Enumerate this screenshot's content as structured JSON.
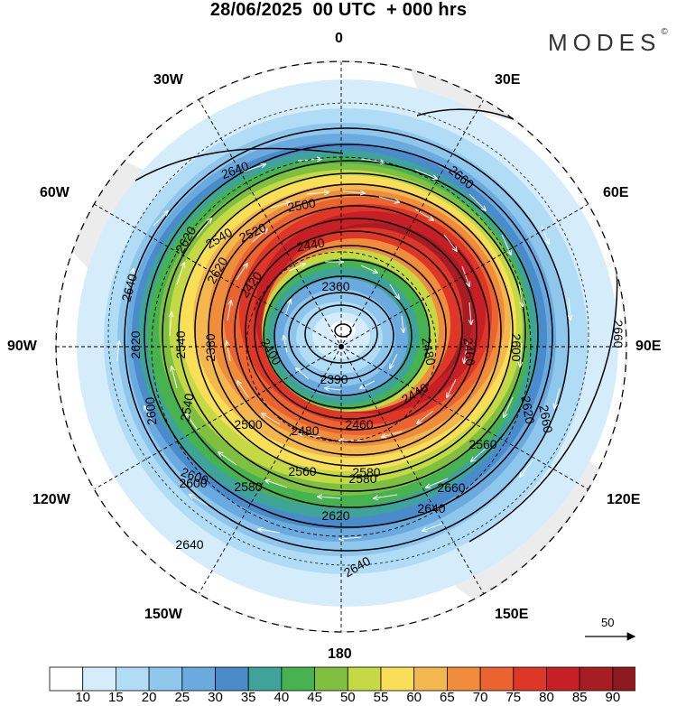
{
  "title": "28/06/2025  00 UTC  + 000 hrs",
  "brand": "MODES",
  "brand_mark": "©",
  "longitude_labels": {
    "n": "0",
    "e30": "30E",
    "e60": "60E",
    "e90": "90E",
    "e120": "120E",
    "e150": "150E",
    "s": "180",
    "w150": "150W",
    "w120": "120W",
    "w90": "90W",
    "w60": "60W",
    "w30": "30W"
  },
  "contour_labels": [
    "2640",
    "2660",
    "2660",
    "2660",
    "2660",
    "2620",
    "2640",
    "2620",
    "2600",
    "2600",
    "2580",
    "2560",
    "2540",
    "2540",
    "2500",
    "2500",
    "2480",
    "2460",
    "2440",
    "2440",
    "2420",
    "2400",
    "2390",
    "2380",
    "2360",
    "2580",
    "2560",
    "2600",
    "2620",
    "2640",
    "2620",
    "2640",
    "2620",
    "2640",
    "2600",
    "2580",
    "2540",
    "2520",
    "2480",
    "2460"
  ],
  "wind_scale_value": "50",
  "colorbar": {
    "ticks": [
      "10",
      "15",
      "20",
      "25",
      "30",
      "35",
      "40",
      "45",
      "50",
      "55",
      "60",
      "65",
      "70",
      "75",
      "80",
      "85",
      "90"
    ],
    "colors": [
      "#ffffff",
      "#d5ecfb",
      "#b1dcf6",
      "#8ec6ec",
      "#6aaadf",
      "#4a8ccb",
      "#3fa39a",
      "#47b250",
      "#80c041",
      "#c4d944",
      "#f8df57",
      "#f4b74d",
      "#f08d3c",
      "#ea6330",
      "#df3727",
      "#c71f26",
      "#a81d23",
      "#8c1a1e"
    ]
  }
}
